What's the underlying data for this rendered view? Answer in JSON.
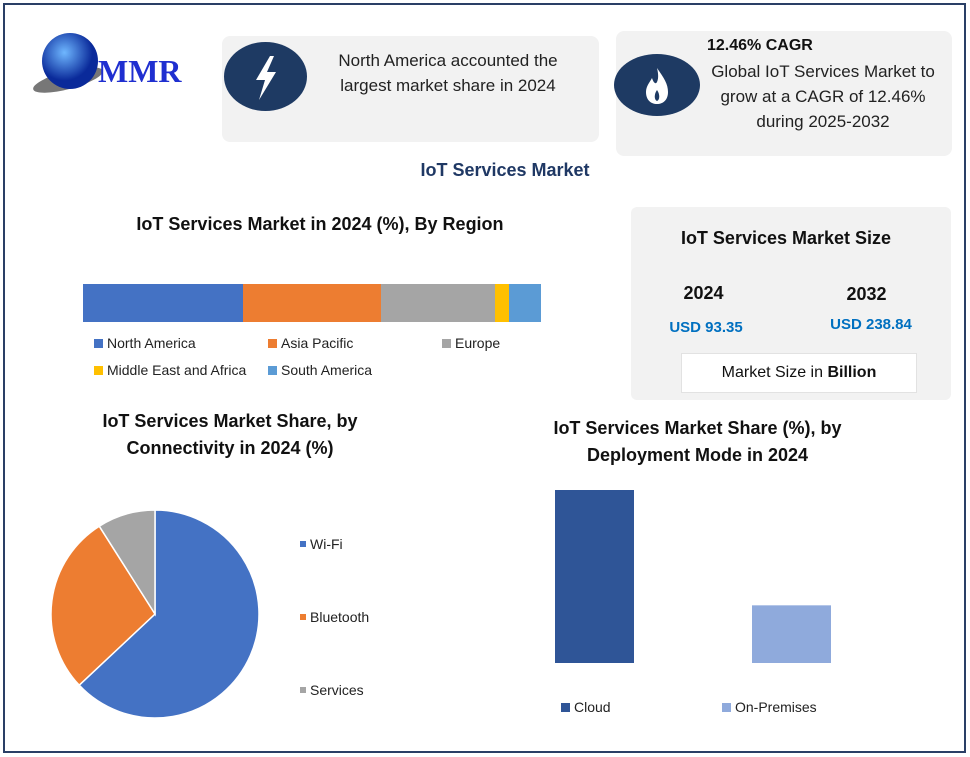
{
  "logo": {
    "text": "MMR"
  },
  "callout_left": {
    "icon": "lightning-icon",
    "text": "North America accounted the largest market share in 2024"
  },
  "callout_right": {
    "icon": "flame-icon",
    "headline": "12.46% CAGR",
    "text": "Global IoT Services Market to grow at a CAGR of 12.46% during 2025-2032"
  },
  "main_title": "IoT Services Market",
  "size_box": {
    "title": "IoT Services Market Size",
    "years": [
      {
        "year": "2024",
        "value": "USD 93.35"
      },
      {
        "year": "2032",
        "value": "USD 238.84"
      }
    ],
    "note_prefix": "Market Size in ",
    "note_bold": "Billion",
    "value_color": "#0070c0"
  },
  "chart_data": [
    {
      "type": "bar",
      "orientation": "horizontal-stacked",
      "title": "IoT Services Market in 2024 (%), By Region",
      "legend": "bottom",
      "series": [
        {
          "name": "North America",
          "values": [
            35
          ],
          "color": "#4472c4"
        },
        {
          "name": "Asia Pacific",
          "values": [
            30
          ],
          "color": "#ed7d31"
        },
        {
          "name": "Europe",
          "values": [
            25
          ],
          "color": "#a5a5a5"
        },
        {
          "name": "Middle East and Africa",
          "values": [
            3
          ],
          "color": "#ffc000"
        },
        {
          "name": "South America",
          "values": [
            7
          ],
          "color": "#5b9bd5"
        }
      ]
    },
    {
      "type": "pie",
      "title": "IoT Services Market Share, by Connectivity in 2024 (%)",
      "legend": "right",
      "categories": [
        "Wi-Fi",
        "Bluetooth",
        "Services"
      ],
      "values": [
        63,
        28,
        9
      ],
      "colors": [
        "#4472c4",
        "#ed7d31",
        "#a5a5a5"
      ]
    },
    {
      "type": "bar",
      "title": "IoT Services Market Share (%), by Deployment Mode in 2024",
      "legend": "bottom",
      "categories": [
        "Cloud",
        "On-Premises"
      ],
      "values": [
        75,
        25
      ],
      "colors": [
        "#2f5597",
        "#8faadc"
      ]
    }
  ]
}
